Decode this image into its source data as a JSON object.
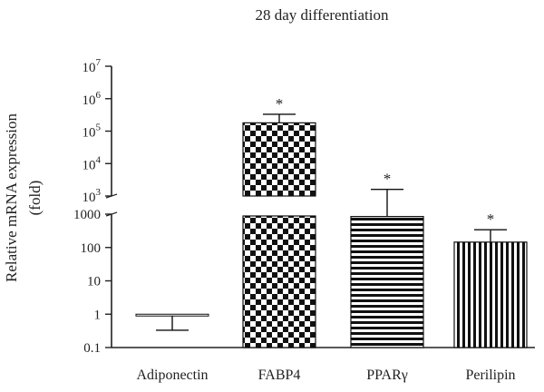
{
  "chart_data": {
    "type": "bar",
    "title": "28 day differentiation",
    "ylabel_line1": "Relative mRNA expression",
    "ylabel_line2": "(fold)",
    "xlabel": "",
    "yscale": "log",
    "ylim": [
      0.1,
      10000000
    ],
    "axis_break": [
      1000,
      1000
    ],
    "categories": [
      "Adiponectin",
      "FABP4",
      "PPARγ",
      "Perilipin"
    ],
    "values": [
      0.9,
      180000,
      850,
      145
    ],
    "error_upper": [
      null,
      330000,
      1600,
      340
    ],
    "error_lower": [
      0.33,
      null,
      null,
      null
    ],
    "significance": [
      "",
      "*",
      "*",
      "*"
    ],
    "patterns": [
      "horizontal-stripes",
      "checkerboard",
      "horizontal-stripes",
      "vertical-stripes"
    ],
    "lower_ticks": [
      {
        "value": 0.1,
        "label": "0.1"
      },
      {
        "value": 1,
        "label": "1"
      },
      {
        "value": 10,
        "label": "10"
      },
      {
        "value": 100,
        "label": "100"
      },
      {
        "value": 1000,
        "label": "1000"
      }
    ],
    "upper_ticks": [
      {
        "value": 1000,
        "base": "10",
        "exp": "3"
      },
      {
        "value": 10000,
        "base": "10",
        "exp": "4"
      },
      {
        "value": 100000,
        "base": "10",
        "exp": "5"
      },
      {
        "value": 1000000,
        "base": "10",
        "exp": "6"
      },
      {
        "value": 10000000,
        "base": "10",
        "exp": "7"
      }
    ],
    "colors": {
      "bar": "#111111",
      "axis": "#222222",
      "background": "#ffffff"
    }
  }
}
